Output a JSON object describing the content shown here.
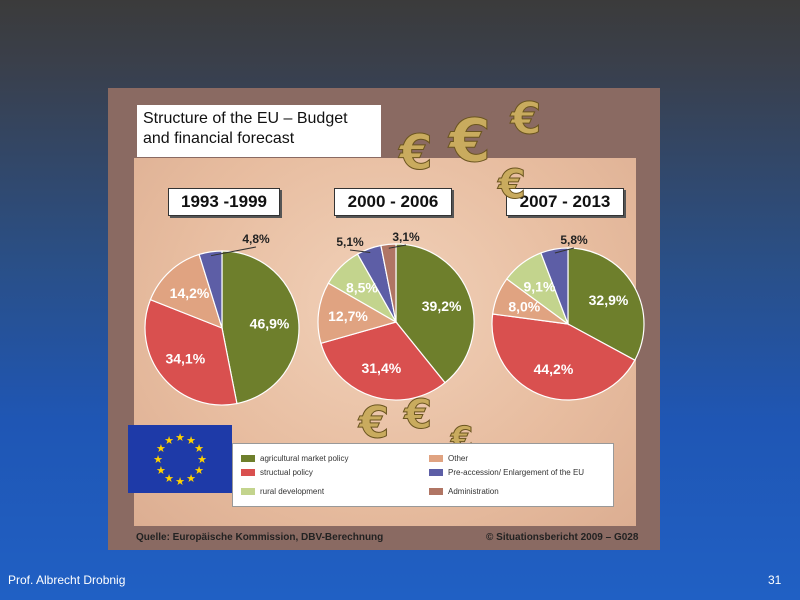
{
  "title": "Structure of the EU – Budget\nand financial forecast",
  "chart_data": [
    {
      "type": "pie",
      "title": "1993 -1999",
      "slices": [
        {
          "name": "agricultural market policy",
          "value": 46.9,
          "label": "46,9%",
          "color": "#6e7f2c"
        },
        {
          "name": "structual policy",
          "value": 34.1,
          "label": "34,1%",
          "color": "#d9504f"
        },
        {
          "name": "Other",
          "value": 14.2,
          "label": "14,2%",
          "color": "#e0a381"
        },
        {
          "name": "Pre-accession/ Enlargement of the EU",
          "value": 4.8,
          "label": "4,8%",
          "color": "#5d5ea6"
        }
      ]
    },
    {
      "type": "pie",
      "title": "2000 - 2006",
      "slices": [
        {
          "name": "agricultural market policy",
          "value": 39.2,
          "label": "39,2%",
          "color": "#6e7f2c"
        },
        {
          "name": "structual policy",
          "value": 31.4,
          "label": "31,4%",
          "color": "#d9504f"
        },
        {
          "name": "Other",
          "value": 12.7,
          "label": "12,7%",
          "color": "#e0a381"
        },
        {
          "name": "rural development",
          "value": 8.5,
          "label": "8,5%",
          "color": "#c3d48d"
        },
        {
          "name": "Pre-accession/ Enlargement of the EU",
          "value": 5.1,
          "label": "5,1%",
          "color": "#5d5ea6"
        },
        {
          "name": "Administration",
          "value": 3.1,
          "label": "3,1%",
          "color": "#b07564"
        }
      ]
    },
    {
      "type": "pie",
      "title": "2007 - 2013",
      "slices": [
        {
          "name": "agricultural market policy",
          "value": 32.9,
          "label": "32,9%",
          "color": "#6e7f2c"
        },
        {
          "name": "structual policy",
          "value": 44.2,
          "label": "44,2%",
          "color": "#d9504f"
        },
        {
          "name": "Other",
          "value": 8.0,
          "label": "8,0%",
          "color": "#e0a381"
        },
        {
          "name": "rural development",
          "value": 9.1,
          "label": "9,1%",
          "color": "#c3d48d"
        },
        {
          "name": "Pre-accession/ Enlargement of the EU",
          "value": 5.8,
          "label": "5,8%",
          "color": "#5d5ea6"
        }
      ]
    }
  ],
  "legend": [
    {
      "label": "agricultural market policy",
      "color": "#6e7f2c"
    },
    {
      "label": "structual policy",
      "color": "#d9504f"
    },
    {
      "label": "rural development",
      "color": "#c3d48d"
    },
    {
      "label": "Other",
      "color": "#e0a381"
    },
    {
      "label": "Pre-accession/ Enlargement of the EU",
      "color": "#5d5ea6"
    },
    {
      "label": "Administration",
      "color": "#b07564"
    }
  ],
  "source": "Quelle: Europäische Kommission, DBV-Berechnung",
  "copyright": "© Situationsbericht 2009 – G028",
  "footer": {
    "author": "Prof. Albrecht Drobnig",
    "page": "31"
  }
}
